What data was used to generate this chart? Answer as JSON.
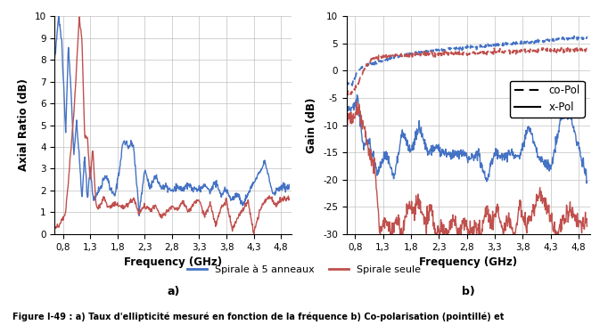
{
  "left_xlim": [
    0.65,
    5.0
  ],
  "left_ylim": [
    0,
    10
  ],
  "right_ylim": [
    -30,
    10
  ],
  "xticks": [
    0.8,
    1.3,
    1.8,
    2.3,
    2.8,
    3.3,
    3.8,
    4.3,
    4.8
  ],
  "left_yticks": [
    0,
    1,
    2,
    3,
    4,
    5,
    6,
    7,
    8,
    9,
    10
  ],
  "right_yticks": [
    -30,
    -25,
    -20,
    -15,
    -10,
    -5,
    0,
    5,
    10
  ],
  "left_ylabel": "Axial Ratio (dB)",
  "right_ylabel": "Gain (dB)",
  "xlabel": "Frequency (GHz)",
  "subplot_a_label": "a)",
  "subplot_b_label": "b)",
  "legend_label_spiral5": "Spirale à 5 anneaux",
  "legend_label_spirale": "Spirale seule",
  "legend_copol": "co-Pol",
  "legend_xpol": "x-Pol",
  "color_blue": "#4472C4",
  "color_red": "#C0504D",
  "figure_caption": "Figure I-49 : a) Taux d'ellipticité mesuré en fonction de la fréquence b) Co-polarisation (pointillé) et",
  "background_color": "#ffffff",
  "grid_color": "#C0C0C0"
}
